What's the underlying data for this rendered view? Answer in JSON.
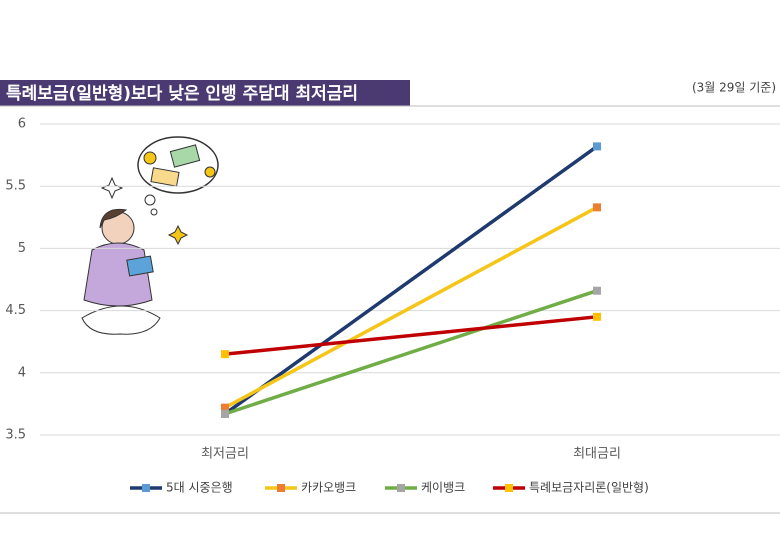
{
  "chart_data": {
    "type": "line",
    "title": "특례보금(일반형)보다 낮은 인뱅 주담대 최저금리",
    "subtitle": "(3월 29일 기준)",
    "categories": [
      "최저금리",
      "최대금리"
    ],
    "series": [
      {
        "name": "5대 시중은행",
        "color": "#1f3a6e",
        "marker_color": "#5b9bd5",
        "values": [
          3.67,
          5.82
        ]
      },
      {
        "name": "카카오뱅크",
        "color": "#f5c518",
        "marker_color": "#ed7d31",
        "values": [
          3.72,
          5.33
        ]
      },
      {
        "name": "케이뱅크",
        "color": "#70ad47",
        "marker_color": "#a5a5a5",
        "values": [
          3.67,
          4.66
        ]
      },
      {
        "name": "특례보금자리론(일반형)",
        "color": "#c00000",
        "marker_color": "#ffc000",
        "values": [
          4.15,
          4.45
        ]
      }
    ],
    "ylim": [
      3.5,
      6
    ],
    "yticks": [
      3.5,
      4,
      4.5,
      5,
      5.5,
      6
    ],
    "grid": true
  }
}
